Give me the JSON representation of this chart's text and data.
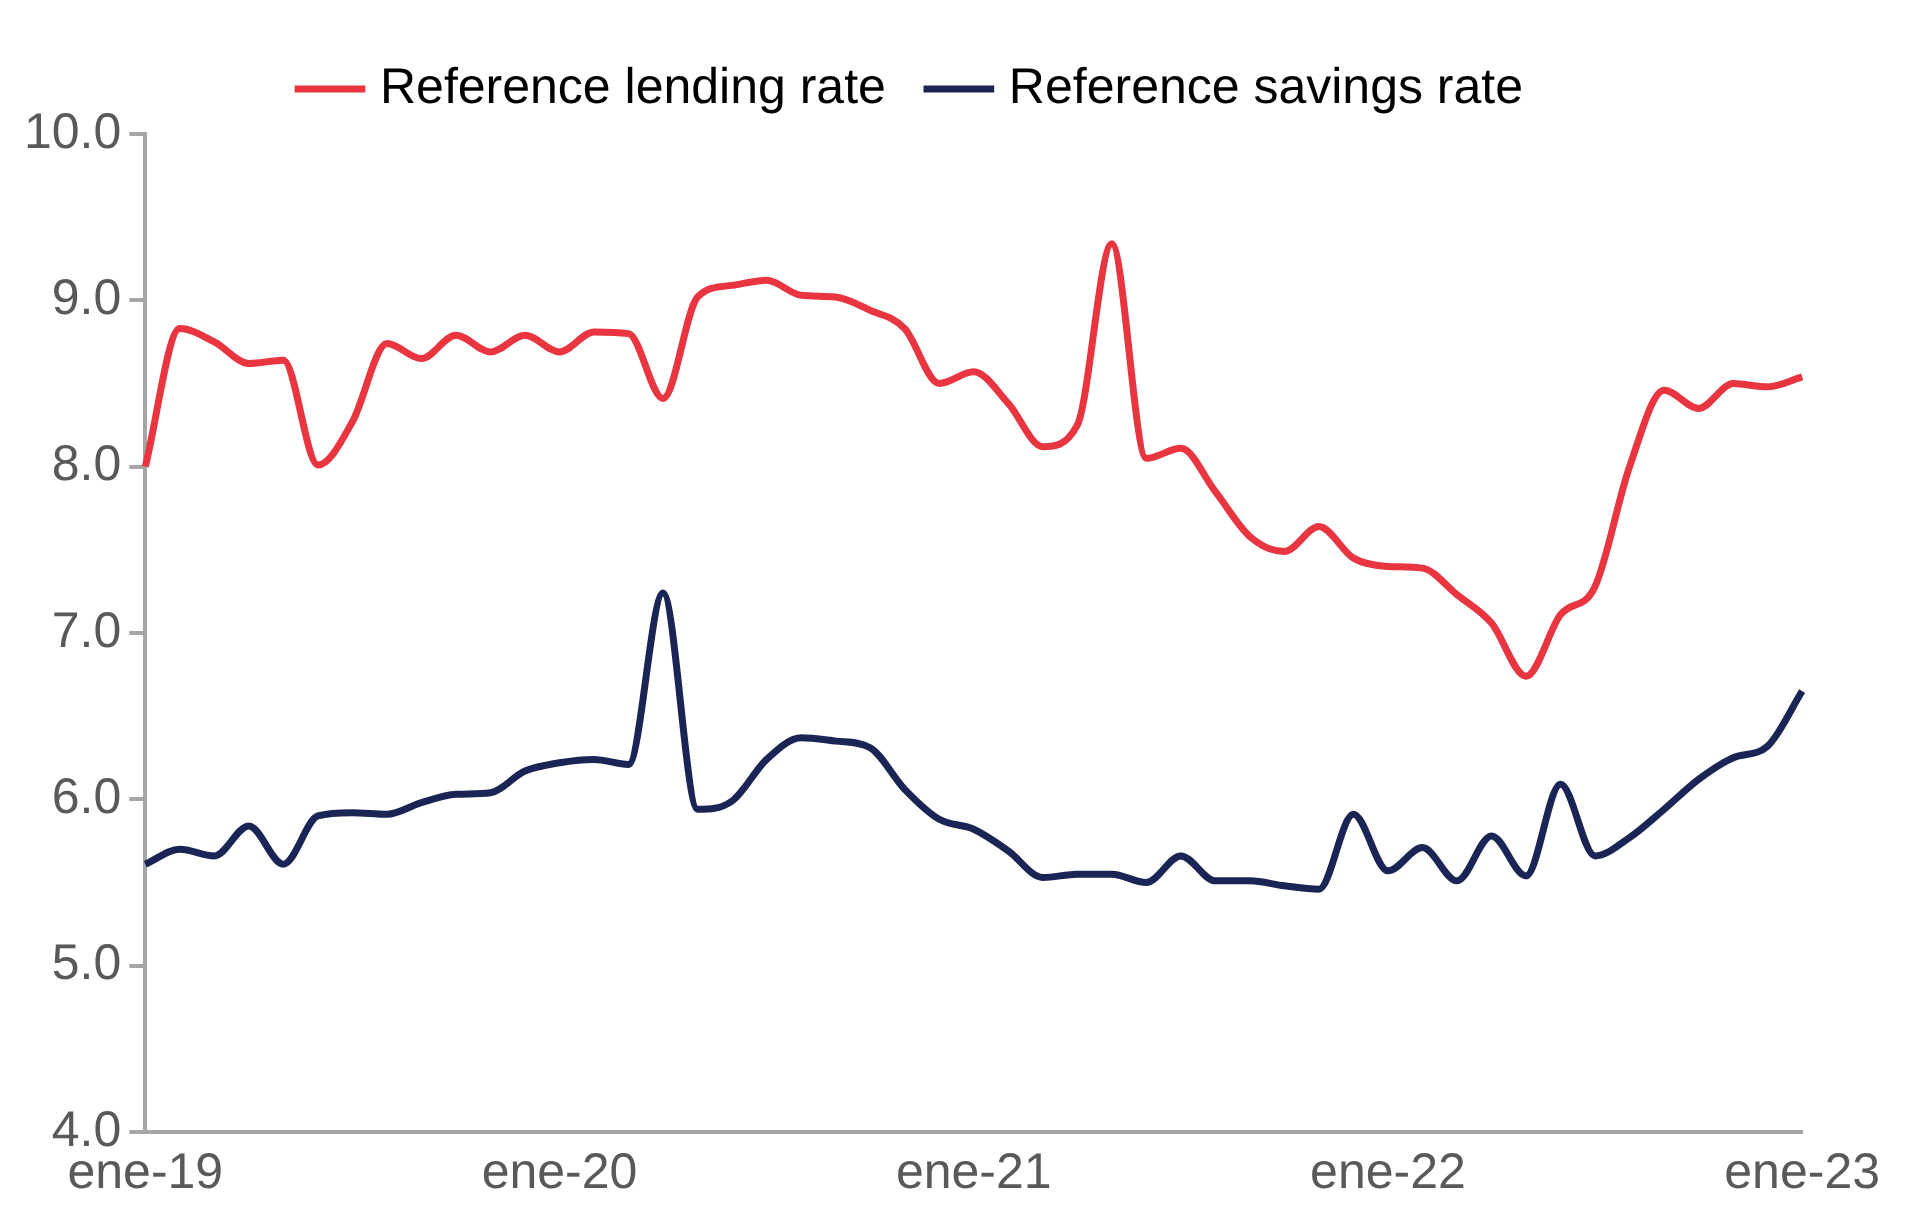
{
  "chart_data": {
    "type": "line",
    "categories": [
      "ene-19",
      null,
      null,
      null,
      null,
      null,
      null,
      null,
      null,
      null,
      null,
      null,
      "ene-20",
      null,
      null,
      null,
      null,
      null,
      null,
      null,
      null,
      null,
      null,
      null,
      "ene-21",
      null,
      null,
      null,
      null,
      null,
      null,
      null,
      null,
      null,
      null,
      null,
      "ene-22",
      null,
      null,
      null,
      null,
      null,
      null,
      null,
      null,
      null,
      null,
      null,
      "ene-23"
    ],
    "series": [
      {
        "name": "Reference lending rate",
        "color": "#e8353f",
        "values": [
          8.0,
          8.83,
          8.75,
          8.62,
          8.64,
          8.01,
          8.27,
          8.74,
          8.65,
          8.79,
          8.69,
          8.79,
          8.69,
          8.81,
          8.8,
          8.41,
          9.02,
          9.09,
          9.12,
          9.03,
          9.02,
          8.94,
          8.83,
          8.5,
          8.57,
          8.38,
          8.12,
          8.25,
          9.34,
          8.05,
          8.11,
          7.85,
          7.58,
          7.49,
          7.64,
          7.45,
          7.4,
          7.39,
          7.23,
          7.06,
          6.74,
          7.11,
          7.28,
          8.0,
          8.46,
          8.35,
          8.5,
          8.48,
          8.54
        ]
      },
      {
        "name": "Reference savings rate",
        "color": "#1b2555",
        "values": [
          5.61,
          5.7,
          5.66,
          5.84,
          5.61,
          5.9,
          5.92,
          5.91,
          5.98,
          6.03,
          6.04,
          6.17,
          6.22,
          6.24,
          6.21,
          7.24,
          5.94,
          5.99,
          6.24,
          6.37,
          6.35,
          6.31,
          6.06,
          5.88,
          5.82,
          5.69,
          5.53,
          5.55,
          5.55,
          5.5,
          5.66,
          5.51,
          5.51,
          5.48,
          5.46,
          5.91,
          5.57,
          5.71,
          5.51,
          5.78,
          5.54,
          6.09,
          5.66,
          5.77,
          5.94,
          6.12,
          6.25,
          6.32,
          6.65
        ]
      }
    ],
    "ylim": [
      4,
      10
    ],
    "yticks": [
      {
        "value": 4,
        "label": "4.0"
      },
      {
        "value": 5,
        "label": "5.0"
      },
      {
        "value": 6,
        "label": "6.0"
      },
      {
        "value": 7,
        "label": "7.0"
      },
      {
        "value": 8,
        "label": "8.0"
      },
      {
        "value": 9,
        "label": "9.0"
      },
      {
        "value": 10,
        "label": "10.0"
      }
    ],
    "legend": "top",
    "grid": false,
    "marker": "none",
    "line_style": "solid"
  }
}
